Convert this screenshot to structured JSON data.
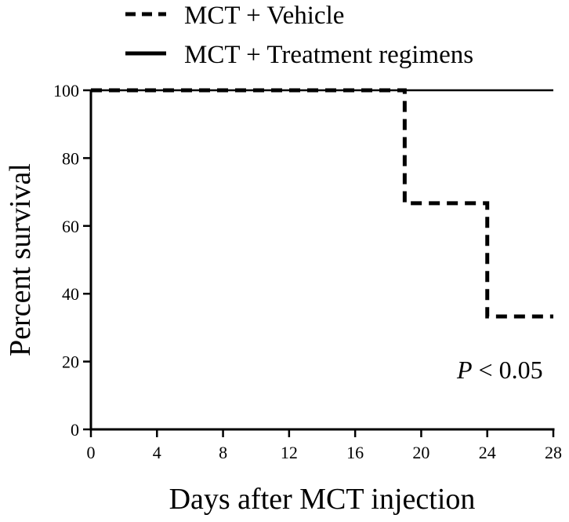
{
  "chart_data": {
    "type": "line",
    "step": true,
    "xlabel": "Days after MCT injection",
    "ylabel": "Percent survival",
    "xlim": [
      0,
      28
    ],
    "ylim": [
      0,
      100
    ],
    "xticks": [
      0,
      4,
      8,
      12,
      16,
      20,
      24,
      28
    ],
    "yticks": [
      0,
      20,
      40,
      60,
      80,
      100
    ],
    "grid": false,
    "legend_position": "top",
    "series": [
      {
        "name": "MCT + Vehicle",
        "line_style": "dashed",
        "color": "#000000",
        "x": [
          0,
          19,
          19,
          24,
          24,
          28
        ],
        "y": [
          100,
          100,
          66.7,
          66.7,
          33.3,
          33.3
        ]
      },
      {
        "name": "MCT + Treatment regimens",
        "line_style": "solid",
        "color": "#000000",
        "x": [
          0,
          28
        ],
        "y": [
          100,
          100
        ]
      }
    ],
    "annotations": [
      {
        "italic": "P",
        "rest": " < 0.05"
      }
    ]
  }
}
